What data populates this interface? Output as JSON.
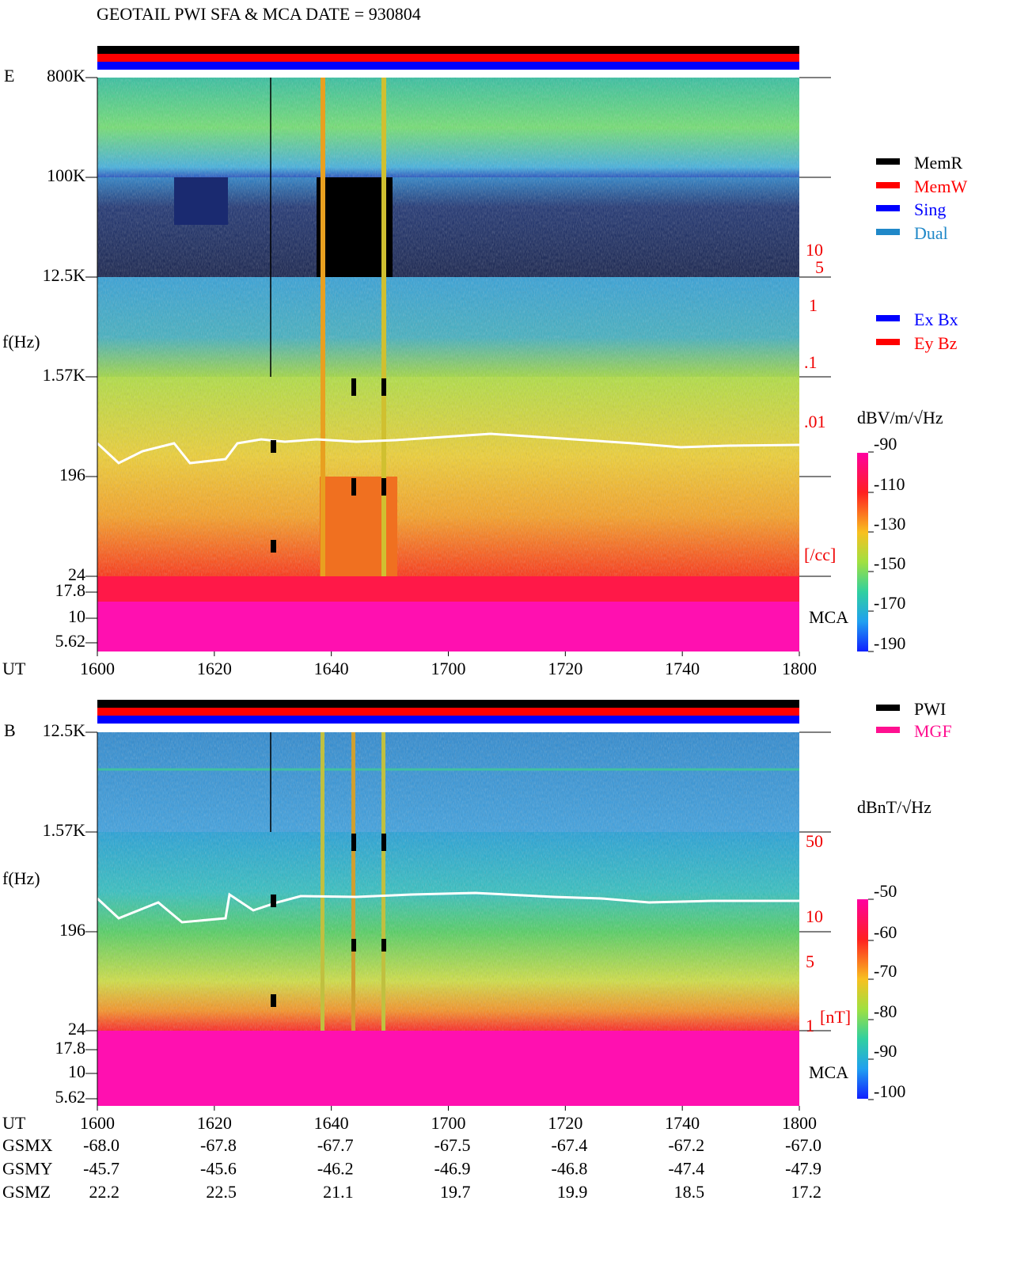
{
  "title": "GEOTAIL  PWI SFA & MCA   DATE = 930804",
  "panels": [
    {
      "label": "E",
      "y_label": "f(Hz)",
      "freq_ticks": [
        "800K",
        "100K",
        "12.5K",
        "1.57K",
        "196",
        "24",
        "17.8",
        "10",
        "5.62"
      ],
      "right_ticks": [
        "10",
        "5",
        "1",
        ".1",
        ".01",
        "[/cc]"
      ],
      "mca_label": "MCA",
      "unit": "dBV/m/√Hz",
      "colorbar_ticks": [
        -90,
        -110,
        -130,
        -150,
        -170,
        -190
      ],
      "legend": [
        {
          "name": "MemR",
          "color": "#000000"
        },
        {
          "name": "MemW",
          "color": "#ff0000"
        },
        {
          "name": "Sing",
          "color": "#0000ff"
        },
        {
          "name": "Dual",
          "color": "#2088c8"
        },
        {
          "name": "Ex Bx",
          "color": "#0000ff"
        },
        {
          "name": "Ey Bz",
          "color": "#ff0000"
        }
      ],
      "time_label": "UT",
      "time_ticks": [
        "1600",
        "1620",
        "1640",
        "1700",
        "1720",
        "1740",
        "1800"
      ]
    },
    {
      "label": "B",
      "y_label": "f(Hz)",
      "freq_ticks": [
        "12.5K",
        "1.57K",
        "196",
        "24",
        "17.8",
        "10",
        "5.62"
      ],
      "right_ticks": [
        "50",
        "10",
        "5",
        "1",
        "[nT]"
      ],
      "mca_label": "MCA",
      "unit": "dBnT/√Hz",
      "colorbar_ticks": [
        -50,
        -60,
        -70,
        -80,
        -90,
        -100
      ],
      "legend": [
        {
          "name": "PWI",
          "color": "#000000"
        },
        {
          "name": "MGF",
          "color": "#ff1090"
        }
      ],
      "time_label": "UT",
      "time_ticks": [
        "1600",
        "1620",
        "1640",
        "1700",
        "1720",
        "1740",
        "1800"
      ]
    }
  ],
  "orbit": [
    {
      "name": "GSMX",
      "values": [
        "-68.0",
        "-67.8",
        "-67.7",
        "-67.5",
        "-67.4",
        "-67.2",
        "-67.0"
      ]
    },
    {
      "name": "GSMY",
      "values": [
        "-45.7",
        "-45.6",
        "-46.2",
        "-46.9",
        "-46.8",
        "-47.4",
        "-47.9"
      ]
    },
    {
      "name": "GSMZ",
      "values": [
        "22.2",
        "22.5",
        "21.1",
        "19.7",
        "19.9",
        "18.5",
        "17.2"
      ]
    }
  ]
}
